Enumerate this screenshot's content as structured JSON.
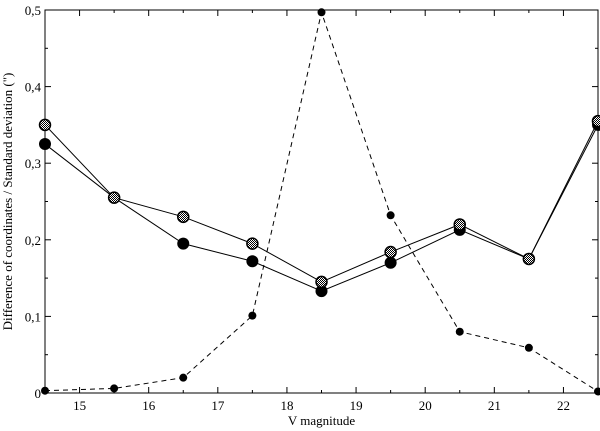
{
  "chart_data": {
    "type": "line",
    "title": "",
    "xlabel": "V magnitude",
    "ylabel": "Difference of coordinates / Standard deviation (\")",
    "xlim": [
      14.5,
      22.5
    ],
    "ylim": [
      0,
      0.5
    ],
    "x_ticks": [
      15,
      16,
      17,
      18,
      19,
      20,
      21,
      22
    ],
    "x_tick_labels": [
      "15",
      "16",
      "17",
      "18",
      "19",
      "20",
      "21",
      "22"
    ],
    "y_ticks": [
      0,
      0.1,
      0.2,
      0.3,
      0.4,
      0.5
    ],
    "y_tick_labels": [
      "0",
      "0,1",
      "0,2",
      "0,3",
      "0,4",
      "0,5"
    ],
    "grid": false,
    "legend": "none",
    "series": [
      {
        "marker": "solid-circle",
        "line": "solid",
        "x": [
          14.5,
          15.5,
          16.5,
          17.5,
          18.5,
          19.5,
          20.5,
          21.5,
          22.5
        ],
        "y": [
          0.325,
          0.255,
          0.195,
          0.172,
          0.133,
          0.17,
          0.213,
          0.175,
          0.35
        ]
      },
      {
        "marker": "hatched-circle",
        "line": "solid",
        "x": [
          14.5,
          15.5,
          16.5,
          17.5,
          18.5,
          19.5,
          20.5,
          21.5,
          22.5
        ],
        "y": [
          0.35,
          0.255,
          0.23,
          0.195,
          0.145,
          0.184,
          0.22,
          0.175,
          0.355
        ]
      },
      {
        "marker": "small-solid-circle",
        "line": "dashed",
        "x": [
          14.5,
          15.5,
          16.5,
          17.5,
          18.5,
          19.5,
          20.5,
          21.5,
          22.5
        ],
        "y": [
          0.003,
          0.006,
          0.02,
          0.101,
          0.497,
          0.232,
          0.08,
          0.059,
          0.002
        ]
      }
    ],
    "colors": {
      "line": "#000000",
      "marker": "#000000",
      "background": "#ffffff"
    }
  }
}
